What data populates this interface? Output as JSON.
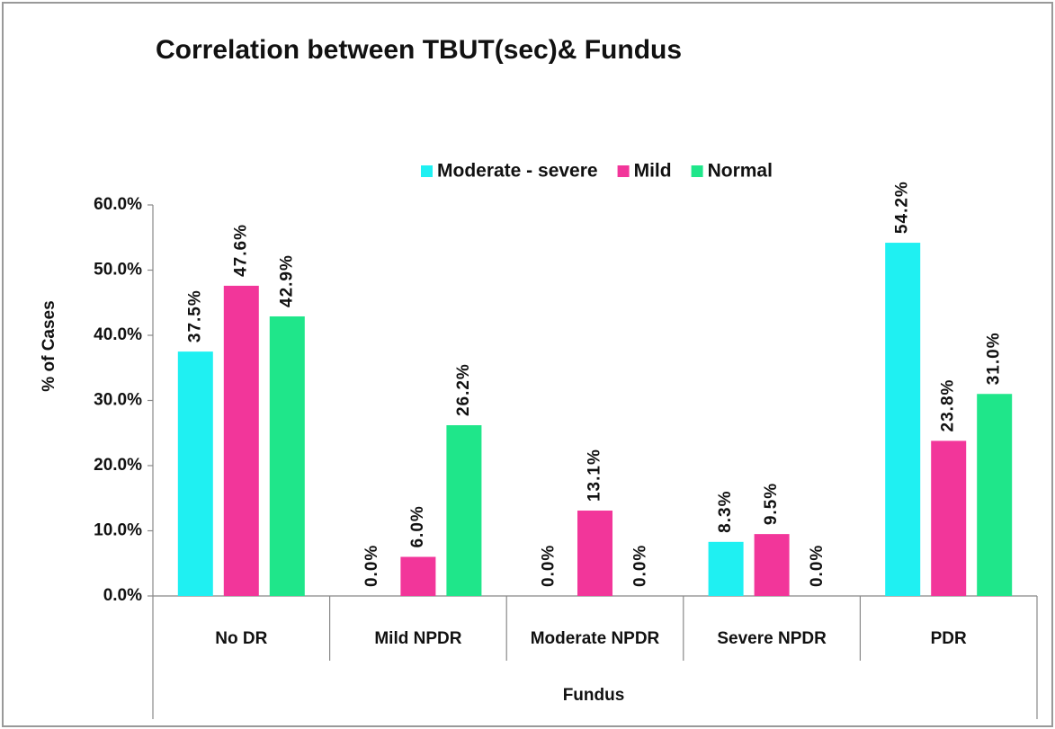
{
  "chart_data": {
    "type": "bar",
    "title": "Correlation between TBUT(sec)& Fundus",
    "x_label": "Fundus",
    "y_label": "% of Cases",
    "categories": [
      "No DR",
      "Mild NPDR",
      "Moderate NPDR",
      "Severe NPDR",
      "PDR"
    ],
    "series": [
      {
        "name": "Moderate - severe",
        "color": "#1ff0f2",
        "values": [
          37.5,
          0.0,
          0.0,
          8.3,
          54.2
        ],
        "value_labels": [
          "37.5%",
          "0.0%",
          "0.0%",
          "8.3%",
          "54.2%"
        ]
      },
      {
        "name": "Mild",
        "color": "#f2369a",
        "values": [
          47.6,
          6.0,
          13.1,
          9.5,
          23.8
        ],
        "value_labels": [
          "47.6%",
          "6.0%",
          "13.1%",
          "9.5%",
          "23.8%"
        ]
      },
      {
        "name": "Normal",
        "color": "#1fe68a",
        "values": [
          42.9,
          26.2,
          0.0,
          0.0,
          31.0
        ],
        "value_labels": [
          "42.9%",
          "26.2%",
          "0.0%",
          "0.0%",
          "31.0%"
        ]
      }
    ],
    "ylim": [
      0,
      60
    ],
    "yticks": [
      {
        "value": 0,
        "label": "0.0%"
      },
      {
        "value": 10,
        "label": "10.0%"
      },
      {
        "value": 20,
        "label": "20.0%"
      },
      {
        "value": 30,
        "label": "30.0%"
      },
      {
        "value": 40,
        "label": "40.0%"
      },
      {
        "value": 50,
        "label": "50.0%"
      },
      {
        "value": 60,
        "label": "60.0%"
      }
    ],
    "legend": "top"
  }
}
